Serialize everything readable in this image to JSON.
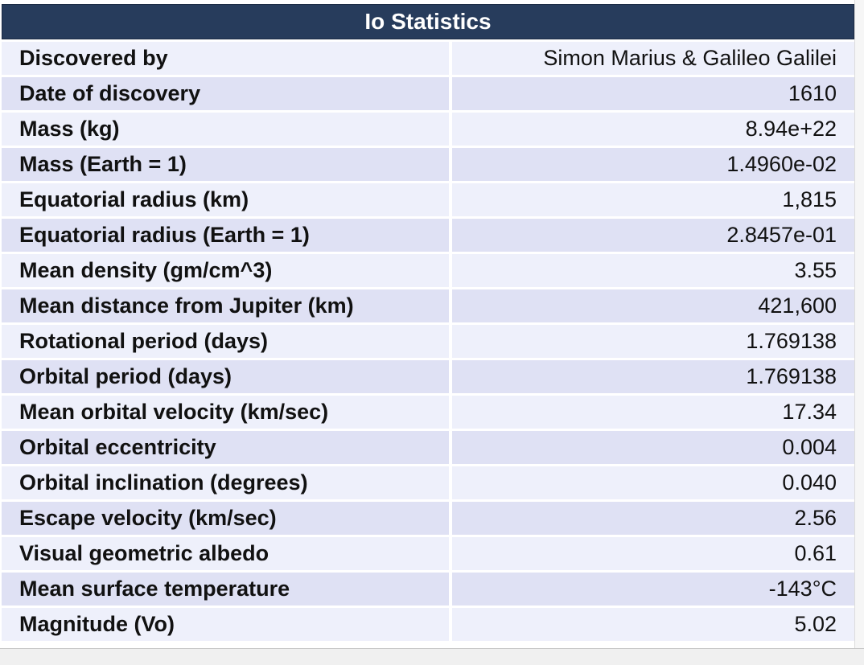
{
  "table": {
    "title": "Io Statistics",
    "rows": [
      {
        "label": "Discovered by",
        "value": "Simon Marius & Galileo Galilei"
      },
      {
        "label": "Date of discovery",
        "value": "1610"
      },
      {
        "label": "Mass (kg)",
        "value": "8.94e+22"
      },
      {
        "label": "Mass (Earth = 1)",
        "value": "1.4960e-02"
      },
      {
        "label": "Equatorial radius (km)",
        "value": "1,815"
      },
      {
        "label": "Equatorial radius (Earth = 1)",
        "value": "2.8457e-01"
      },
      {
        "label": "Mean density (gm/cm^3)",
        "value": "3.55"
      },
      {
        "label": "Mean distance from Jupiter (km)",
        "value": "421,600"
      },
      {
        "label": "Rotational period (days)",
        "value": "1.769138"
      },
      {
        "label": "Orbital period (days)",
        "value": "1.769138"
      },
      {
        "label": "Mean orbital velocity (km/sec)",
        "value": "17.34"
      },
      {
        "label": "Orbital eccentricity",
        "value": "0.004"
      },
      {
        "label": "Orbital inclination (degrees)",
        "value": "0.040"
      },
      {
        "label": "Escape velocity (km/sec)",
        "value": "2.56"
      },
      {
        "label": "Visual geometric albedo",
        "value": "0.61"
      },
      {
        "label": "Mean surface temperature",
        "value": "-143°C"
      },
      {
        "label": "Magnitude (Vo)",
        "value": "5.02"
      }
    ]
  },
  "colors": {
    "header_bg": "#273c5c",
    "row_light": "#eef0fb",
    "row_dark": "#dfe1f4"
  }
}
